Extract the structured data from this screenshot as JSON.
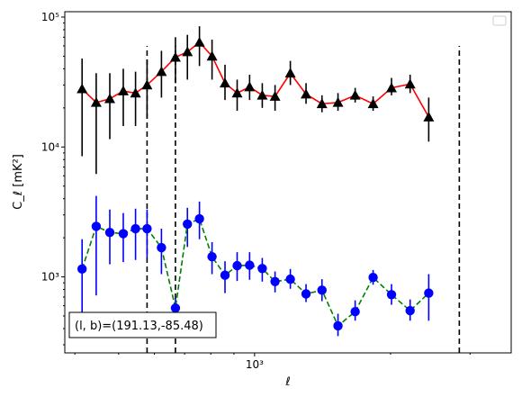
{
  "chart_data": {
    "type": "line",
    "xlabel": "ℓ",
    "ylabel": "C_ℓ  [mK²]",
    "xscale": "log",
    "yscale": "log",
    "xlim": [
      380,
      3700
    ],
    "ylim": [
      260,
      110000
    ],
    "x_tick_labels": [
      {
        "value": 1000,
        "label": "10³"
      }
    ],
    "y_tick_labels": [
      {
        "value": 1000,
        "label": "10³"
      },
      {
        "value": 10000,
        "label": "10⁴"
      },
      {
        "value": 100000,
        "label": "10⁵"
      }
    ],
    "grid": false,
    "legend": {
      "placement": "top-right",
      "entries": []
    },
    "vlines": [
      {
        "x": 578,
        "ymin": 260,
        "ymax": 60000,
        "style": "dashed",
        "color": "#000000"
      },
      {
        "x": 668,
        "ymin": 260,
        "ymax": 60000,
        "style": "dashed",
        "color": "#000000"
      },
      {
        "x": 2840,
        "ymin": 260,
        "ymax": 60000,
        "style": "dashed",
        "color": "#000000"
      }
    ],
    "series": [
      {
        "marker": "triangle",
        "line_style": "solid",
        "line_color": "#ff0000",
        "marker_color": "#000000",
        "errorbar_color": "#000000",
        "points": [
          {
            "x": 415,
            "y": 28000,
            "err_low": 8500,
            "err_high": 48000
          },
          {
            "x": 446,
            "y": 22000,
            "err_low": 6200,
            "err_high": 37000
          },
          {
            "x": 478,
            "y": 23500,
            "err_low": 11500,
            "err_high": 37000
          },
          {
            "x": 512,
            "y": 27000,
            "err_low": 14500,
            "err_high": 40000
          },
          {
            "x": 545,
            "y": 26000,
            "err_low": 14500,
            "err_high": 38000
          },
          {
            "x": 578,
            "y": 30000,
            "err_low": 16500,
            "err_high": 47000
          },
          {
            "x": 622,
            "y": 38000,
            "err_low": 24000,
            "err_high": 55000
          },
          {
            "x": 668,
            "y": 49000,
            "err_low": 31000,
            "err_high": 70000
          },
          {
            "x": 710,
            "y": 54000,
            "err_low": 33000,
            "err_high": 73000
          },
          {
            "x": 755,
            "y": 64000,
            "err_low": 42000,
            "err_high": 85000
          },
          {
            "x": 805,
            "y": 50000,
            "err_low": 33000,
            "err_high": 67000
          },
          {
            "x": 860,
            "y": 31000,
            "err_low": 23000,
            "err_high": 43000
          },
          {
            "x": 915,
            "y": 26000,
            "err_low": 19000,
            "err_high": 33000
          },
          {
            "x": 975,
            "y": 29000,
            "err_low": 23000,
            "err_high": 36000
          },
          {
            "x": 1040,
            "y": 25000,
            "err_low": 20000,
            "err_high": 31000
          },
          {
            "x": 1110,
            "y": 24500,
            "err_low": 19000,
            "err_high": 30000
          },
          {
            "x": 1200,
            "y": 37000,
            "err_low": 30000,
            "err_high": 46000
          },
          {
            "x": 1300,
            "y": 25500,
            "err_low": 21500,
            "err_high": 31000
          },
          {
            "x": 1410,
            "y": 21500,
            "err_low": 18500,
            "err_high": 25000
          },
          {
            "x": 1530,
            "y": 22000,
            "err_low": 19000,
            "err_high": 26000
          },
          {
            "x": 1670,
            "y": 25000,
            "err_low": 22000,
            "err_high": 28500
          },
          {
            "x": 1830,
            "y": 21500,
            "err_low": 19000,
            "err_high": 24500
          },
          {
            "x": 2010,
            "y": 28500,
            "err_low": 25000,
            "err_high": 34000
          },
          {
            "x": 2210,
            "y": 30500,
            "err_low": 26000,
            "err_high": 36000
          },
          {
            "x": 2430,
            "y": 17000,
            "err_low": 11000,
            "err_high": 24000
          }
        ]
      },
      {
        "marker": "circle",
        "line_style": "dashed",
        "line_color": "#008000",
        "marker_color": "#0000ff",
        "errorbar_color": "#0000ff",
        "points": [
          {
            "x": 415,
            "y": 1150,
            "err_low": 460,
            "err_high": 1950
          },
          {
            "x": 446,
            "y": 2450,
            "err_low": 720,
            "err_high": 4200
          },
          {
            "x": 478,
            "y": 2200,
            "err_low": 1250,
            "err_high": 3300
          },
          {
            "x": 512,
            "y": 2150,
            "err_low": 1300,
            "err_high": 3100
          },
          {
            "x": 545,
            "y": 2350,
            "err_low": 1350,
            "err_high": 3350
          },
          {
            "x": 578,
            "y": 2350,
            "err_low": 1400,
            "err_high": 3300
          },
          {
            "x": 622,
            "y": 1680,
            "err_low": 1050,
            "err_high": 2350
          },
          {
            "x": 668,
            "y": 575,
            "err_low": 450,
            "err_high": 680
          },
          {
            "x": 710,
            "y": 2550,
            "err_low": 1700,
            "err_high": 3400
          },
          {
            "x": 755,
            "y": 2800,
            "err_low": 1950,
            "err_high": 3800
          },
          {
            "x": 805,
            "y": 1430,
            "err_low": 1050,
            "err_high": 1850
          },
          {
            "x": 860,
            "y": 1030,
            "err_low": 750,
            "err_high": 1320
          },
          {
            "x": 915,
            "y": 1220,
            "err_low": 930,
            "err_high": 1550
          },
          {
            "x": 975,
            "y": 1230,
            "err_low": 950,
            "err_high": 1550
          },
          {
            "x": 1040,
            "y": 1160,
            "err_low": 920,
            "err_high": 1400
          },
          {
            "x": 1110,
            "y": 920,
            "err_low": 760,
            "err_high": 1100
          },
          {
            "x": 1200,
            "y": 960,
            "err_low": 810,
            "err_high": 1150
          },
          {
            "x": 1300,
            "y": 740,
            "err_low": 640,
            "err_high": 880
          },
          {
            "x": 1410,
            "y": 790,
            "err_low": 650,
            "err_high": 960
          },
          {
            "x": 1530,
            "y": 420,
            "err_low": 350,
            "err_high": 520
          },
          {
            "x": 1670,
            "y": 540,
            "err_low": 460,
            "err_high": 660
          },
          {
            "x": 1830,
            "y": 990,
            "err_low": 870,
            "err_high": 1130
          },
          {
            "x": 2010,
            "y": 730,
            "err_low": 610,
            "err_high": 880
          },
          {
            "x": 2210,
            "y": 550,
            "err_low": 460,
            "err_high": 670
          },
          {
            "x": 2430,
            "y": 750,
            "err_low": 460,
            "err_high": 1050
          }
        ]
      }
    ],
    "annotation": {
      "text": "(l, b)=(191.13,-85.48)",
      "placement": "bottom-left"
    }
  }
}
